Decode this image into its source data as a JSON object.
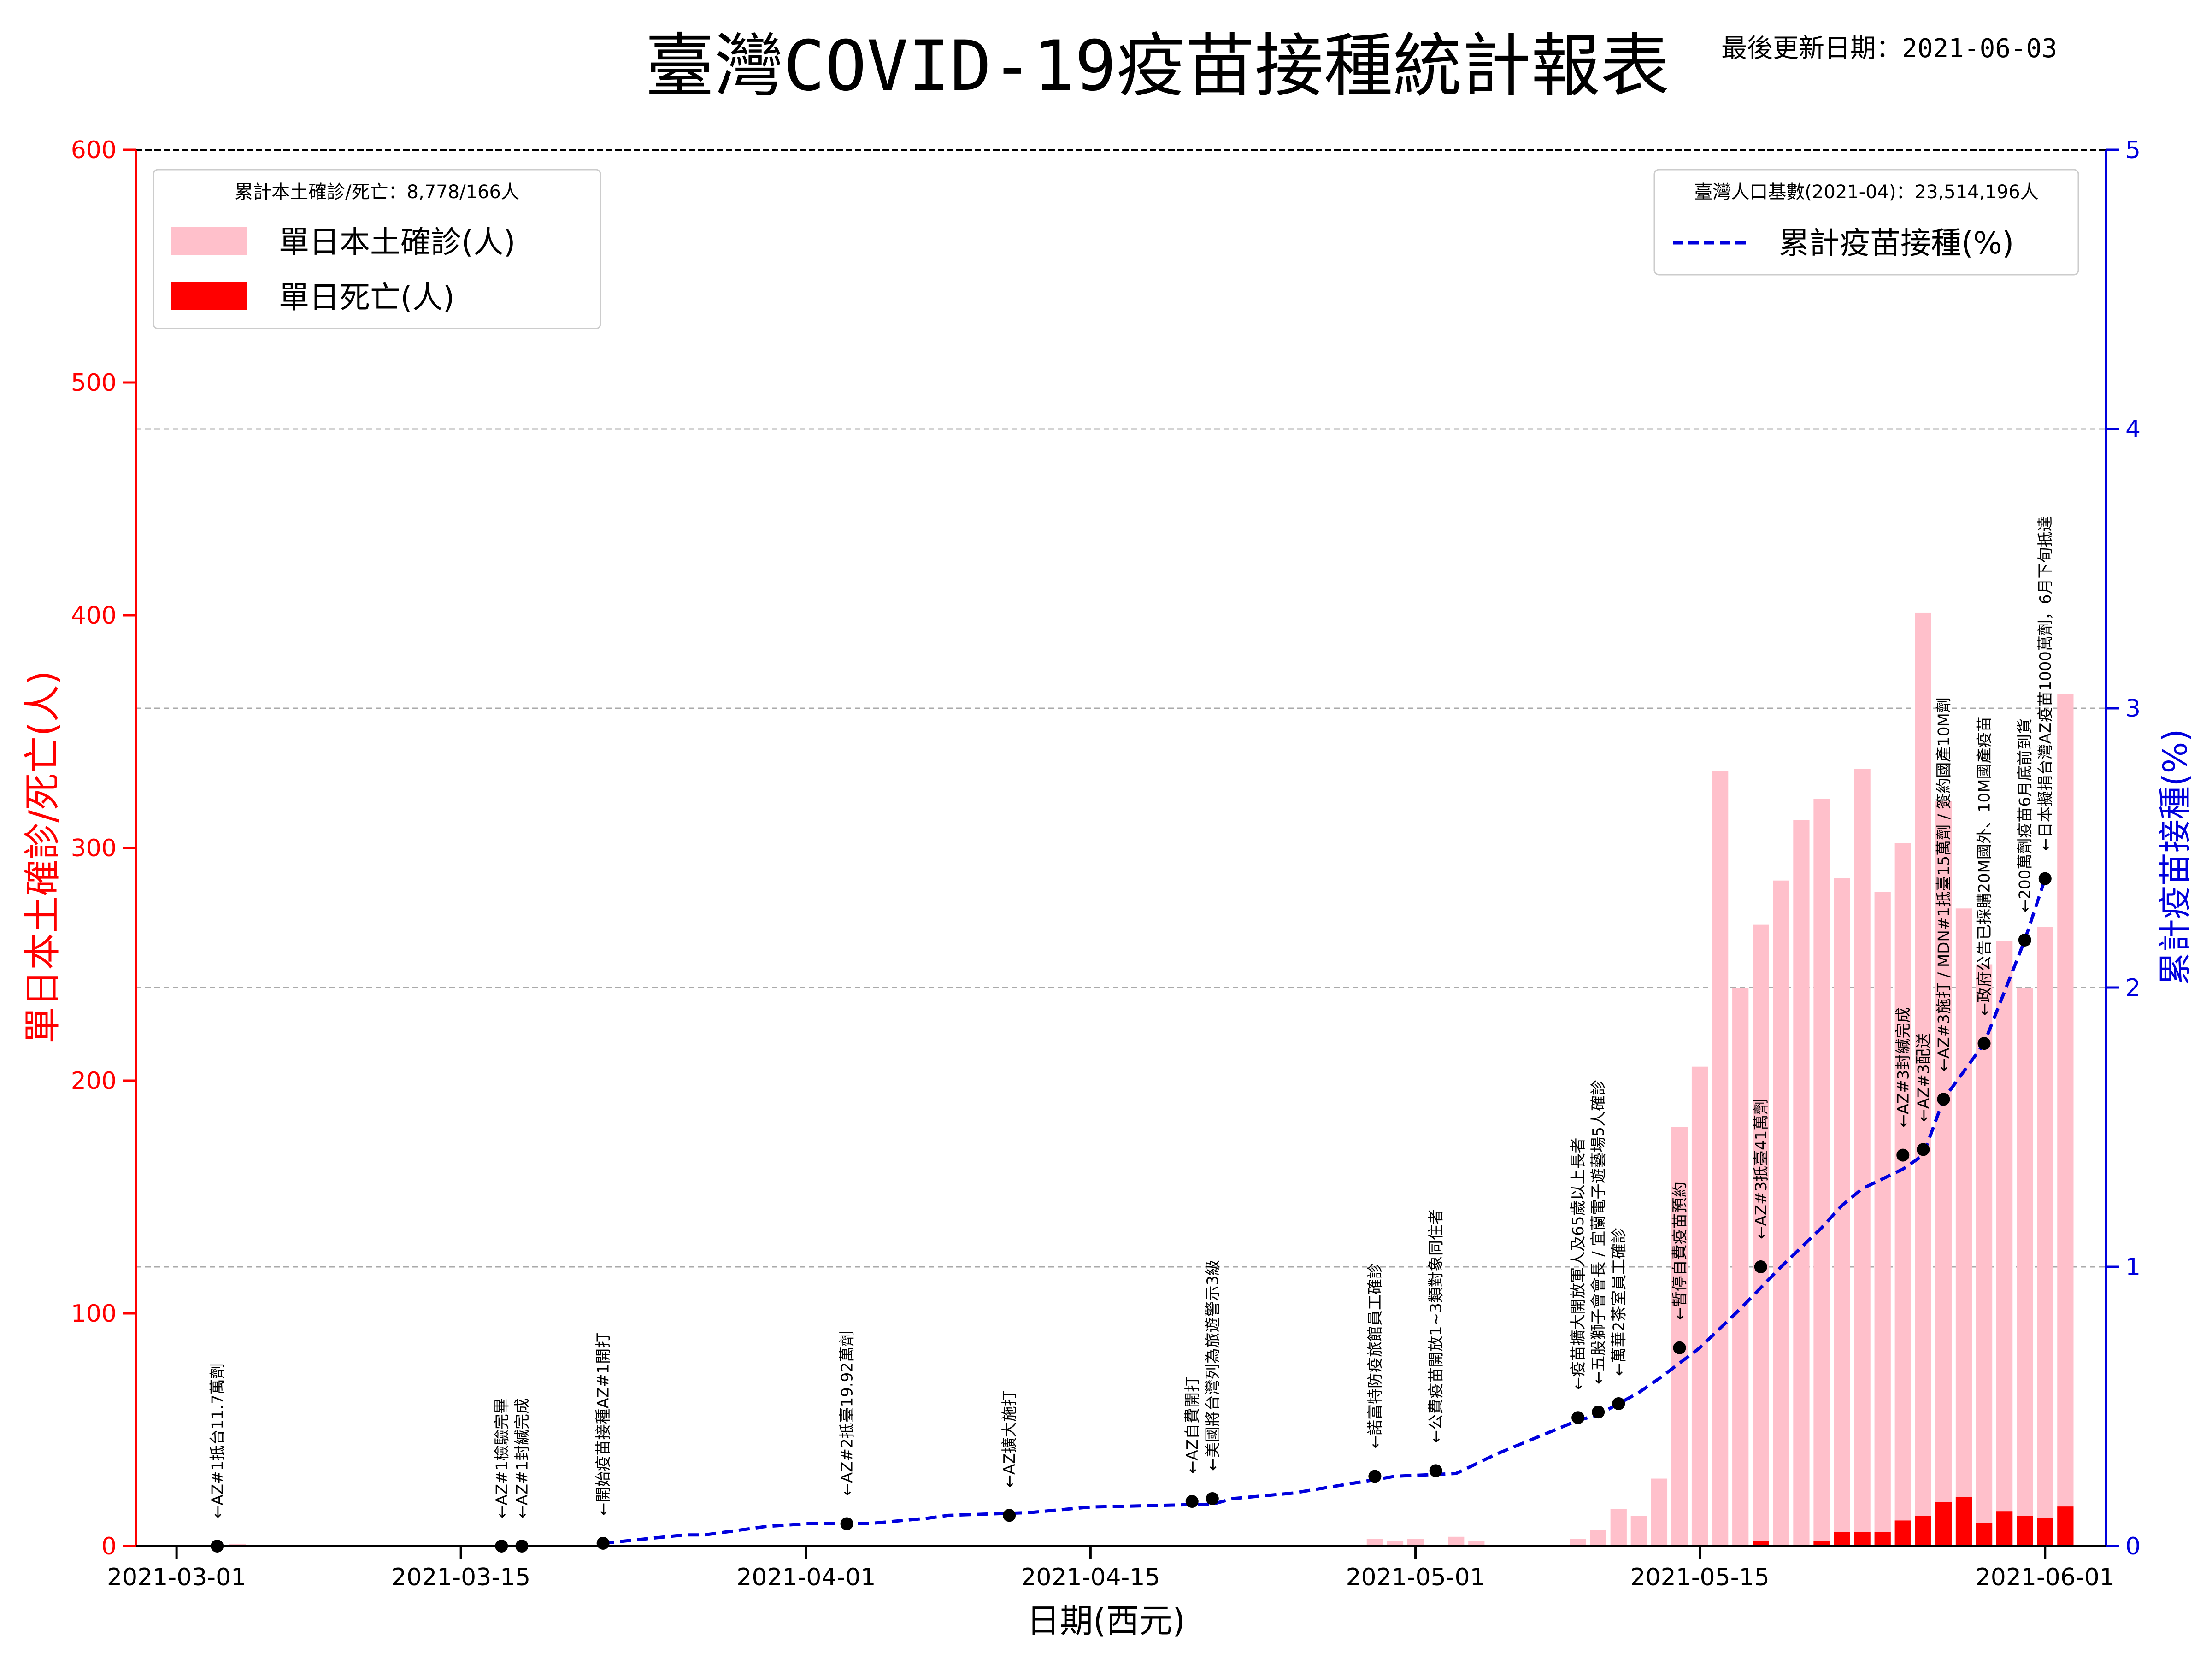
{
  "header": {
    "title": "臺灣COVID-19疫苗接種統計報表",
    "update_date": "最後更新日期：2021-06-03"
  },
  "chart_data": {
    "type": "bar",
    "title": "臺灣COVID-19疫苗接種統計報表",
    "xlabel": "日期(西元)",
    "ylabel_left": "單日本土確診/死亡(人)",
    "ylabel_right": "累計疫苗接種(%)",
    "ylim_left": [
      0,
      600
    ],
    "ylim_right": [
      0,
      5
    ],
    "y_ticks_left": [
      0,
      100,
      200,
      300,
      400,
      500,
      600
    ],
    "y_ticks_right": [
      0,
      1,
      2,
      3,
      4,
      5
    ],
    "x_ticks": [
      "2021-03-01",
      "2021-03-15",
      "2021-04-01",
      "2021-04-15",
      "2021-05-01",
      "2021-05-15",
      "2021-06-01"
    ],
    "x_range": [
      "2021-02-27",
      "2021-06-04"
    ],
    "grid": "horizontal dashed",
    "colors": {
      "cases": "#ffc0cb",
      "deaths": "#ff0000",
      "vaccine": "#0000dd",
      "left_axis": "#ff0000",
      "right_axis": "#0000dd"
    },
    "legend_left": {
      "position": "top-left",
      "title": "累計本土確診/死亡：8,778/166人",
      "entries": [
        "單日本土確診(人)",
        "單日死亡(人)"
      ]
    },
    "legend_right": {
      "position": "top-right",
      "title": "臺灣人口基數(2021-04)：23,514,196人",
      "entries": [
        "累計疫苗接種(%)"
      ]
    },
    "series": [
      {
        "name": "單日本土確診(人)",
        "type": "bar",
        "dates": [
          "2021-03-04",
          "2021-04-29",
          "2021-04-30",
          "2021-05-01",
          "2021-05-03",
          "2021-05-04",
          "2021-05-09",
          "2021-05-10",
          "2021-05-11",
          "2021-05-12",
          "2021-05-13",
          "2021-05-14",
          "2021-05-15",
          "2021-05-16",
          "2021-05-17",
          "2021-05-18",
          "2021-05-19",
          "2021-05-20",
          "2021-05-21",
          "2021-05-22",
          "2021-05-23",
          "2021-05-24",
          "2021-05-25",
          "2021-05-26",
          "2021-05-27",
          "2021-05-28",
          "2021-05-29",
          "2021-05-30",
          "2021-05-31",
          "2021-06-01",
          "2021-06-02"
        ],
        "values": [
          1,
          3,
          2,
          3,
          4,
          2,
          3,
          7,
          16,
          13,
          29,
          180,
          206,
          333,
          240,
          267,
          286,
          312,
          321,
          287,
          334,
          281,
          302,
          401,
          320,
          274,
          250,
          260,
          240,
          266,
          366
        ]
      },
      {
        "name": "單日死亡(人)",
        "type": "bar",
        "dates": [
          "2021-05-18",
          "2021-05-21",
          "2021-05-22",
          "2021-05-23",
          "2021-05-24",
          "2021-05-25",
          "2021-05-26",
          "2021-05-27",
          "2021-05-28",
          "2021-05-29",
          "2021-05-30",
          "2021-05-31",
          "2021-06-01",
          "2021-06-02"
        ],
        "values": [
          2,
          2,
          6,
          6,
          6,
          11,
          13,
          19,
          21,
          10,
          15,
          13,
          12,
          17
        ]
      },
      {
        "name": "累計疫苗接種(%)",
        "type": "line",
        "dates": [
          "2021-03-22",
          "2021-03-26",
          "2021-03-27",
          "2021-03-30",
          "2021-04-01",
          "2021-04-04",
          "2021-04-07",
          "2021-04-08",
          "2021-04-12",
          "2021-04-15",
          "2021-04-21",
          "2021-04-22",
          "2021-04-25",
          "2021-04-30",
          "2021-05-03",
          "2021-05-05",
          "2021-05-07",
          "2021-05-09",
          "2021-05-10",
          "2021-05-11",
          "2021-05-12",
          "2021-05-13",
          "2021-05-15",
          "2021-05-17",
          "2021-05-19",
          "2021-05-21",
          "2021-05-22",
          "2021-05-23",
          "2021-05-25",
          "2021-05-26",
          "2021-05-27",
          "2021-05-29",
          "2021-05-31",
          "2021-06-01"
        ],
        "values": [
          0.01,
          0.04,
          0.04,
          0.07,
          0.08,
          0.08,
          0.1,
          0.11,
          0.12,
          0.14,
          0.15,
          0.17,
          0.19,
          0.25,
          0.26,
          0.33,
          0.39,
          0.45,
          0.47,
          0.51,
          0.55,
          0.6,
          0.71,
          0.85,
          1.0,
          1.14,
          1.22,
          1.28,
          1.35,
          1.4,
          1.6,
          1.8,
          2.17,
          2.39
        ]
      }
    ],
    "event_markers": [
      {
        "date": "2021-03-03",
        "y": 0.0,
        "labels": [
          "←AZ#1抵台11.7萬劑"
        ]
      },
      {
        "date": "2021-03-17",
        "y": 0.0,
        "labels": [
          "←AZ#1檢驗完畢"
        ]
      },
      {
        "date": "2021-03-18",
        "y": 0.0,
        "labels": [
          "←AZ#1封緘完成"
        ]
      },
      {
        "date": "2021-03-22",
        "y": 0.01,
        "labels": [
          "←開始疫苗接種AZ#1開打"
        ]
      },
      {
        "date": "2021-04-03",
        "y": 0.08,
        "labels": [
          "←AZ#2抵臺19.92萬劑"
        ]
      },
      {
        "date": "2021-04-11",
        "y": 0.11,
        "labels": [
          "←AZ擴大施打"
        ]
      },
      {
        "date": "2021-04-20",
        "y": 0.16,
        "labels": [
          "←AZ自費開打"
        ]
      },
      {
        "date": "2021-04-21",
        "y": 0.17,
        "labels": [
          "←美國將台灣列為旅遊警示3級"
        ]
      },
      {
        "date": "2021-04-29",
        "y": 0.25,
        "labels": [
          "←諾富特防疫旅館員工確診"
        ]
      },
      {
        "date": "2021-05-02",
        "y": 0.27,
        "labels": [
          "←公費疫苗開放1~3類對象同住者"
        ]
      },
      {
        "date": "2021-05-09",
        "y": 0.46,
        "labels": [
          "←疫苗擴大開放軍人及65歲以上長者"
        ]
      },
      {
        "date": "2021-05-10",
        "y": 0.48,
        "labels": [
          "←五股獅子會會長 / 宜蘭電子遊藝場5人確診"
        ]
      },
      {
        "date": "2021-05-11",
        "y": 0.51,
        "labels": [
          "←萬華2茶室員工確診"
        ]
      },
      {
        "date": "2021-05-14",
        "y": 0.71,
        "labels": [
          "←暫停自費疫苗預約"
        ]
      },
      {
        "date": "2021-05-18",
        "y": 1.0,
        "labels": [
          "←AZ#3抵臺41萬劑"
        ]
      },
      {
        "date": "2021-05-25",
        "y": 1.4,
        "labels": [
          "←AZ#3封緘完成"
        ]
      },
      {
        "date": "2021-05-26",
        "y": 1.42,
        "labels": [
          "←AZ#3配送"
        ]
      },
      {
        "date": "2021-05-27",
        "y": 1.6,
        "labels": [
          "←AZ#3施打 / MDN#1抵臺15萬劑 / 簽約國產10M劑"
        ]
      },
      {
        "date": "2021-05-29",
        "y": 1.8,
        "labels": [
          "←政府公告已採購20M國外、10M國產疫苗"
        ]
      },
      {
        "date": "2021-05-31",
        "y": 2.17,
        "labels": [
          "←200萬劑疫苗6月底前到貨"
        ]
      },
      {
        "date": "2021-06-01",
        "y": 2.39,
        "labels": [
          "←日本擬捐台灣AZ疫苗1000萬劑，6月下旬抵達"
        ]
      }
    ]
  }
}
